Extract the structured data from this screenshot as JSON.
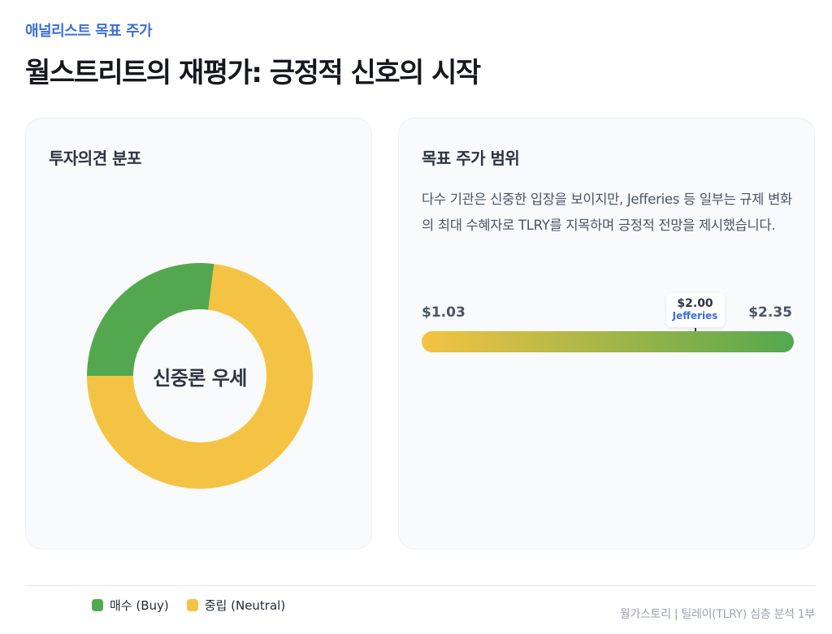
{
  "header": {
    "eyebrow": "애널리스트 목표 주가",
    "title": "월스트리트의 재평가: 긍정적 신호의 시작"
  },
  "colors": {
    "accent": "#3b6fd8",
    "buy": "#53a84f",
    "neutral": "#f5c343",
    "card_bg": "#f8fafc"
  },
  "distribution_card": {
    "title": "투자의견 분포",
    "center_label": "신중론 우세"
  },
  "range_card": {
    "title": "목표 주가 범위",
    "description": "다수 기관은 신중한 입장을 보이지만, Jefferies 등 일부는 규제 변화의 최대 수혜자로 TLRY를 지목하며 긍정적 전망을 제시했습니다.",
    "min_label": "$1.03",
    "max_label": "$2.35",
    "min": 1.03,
    "max": 2.35,
    "marker": {
      "price_label": "$2.00",
      "value": 2.0,
      "firm": "Jefferies"
    }
  },
  "legend": [
    {
      "label": "매수 (Buy)",
      "color": "#53a84f"
    },
    {
      "label": "중립 (Neutral)",
      "color": "#f5c343"
    }
  ],
  "footer": {
    "note": "월가스토리 | 틸레이(TLRY) 심층 분석 1부"
  },
  "chart_data": [
    {
      "type": "pie",
      "variant": "donut",
      "title": "투자의견 분포",
      "center_text": "신중론 우세",
      "categories": [
        "매수 (Buy)",
        "중립 (Neutral)"
      ],
      "values": [
        27,
        73
      ],
      "unit": "percent (approx., read from arc angles)",
      "colors": [
        "#53a84f",
        "#f5c343"
      ],
      "legend_position": "bottom"
    },
    {
      "type": "bar",
      "variant": "range-gradient",
      "title": "목표 주가 범위",
      "range": [
        1.03,
        2.35
      ],
      "markers": [
        {
          "label": "Jefferies",
          "value": 2.0
        }
      ],
      "gradient": [
        "#f5c343",
        "#53a84f"
      ]
    }
  ]
}
